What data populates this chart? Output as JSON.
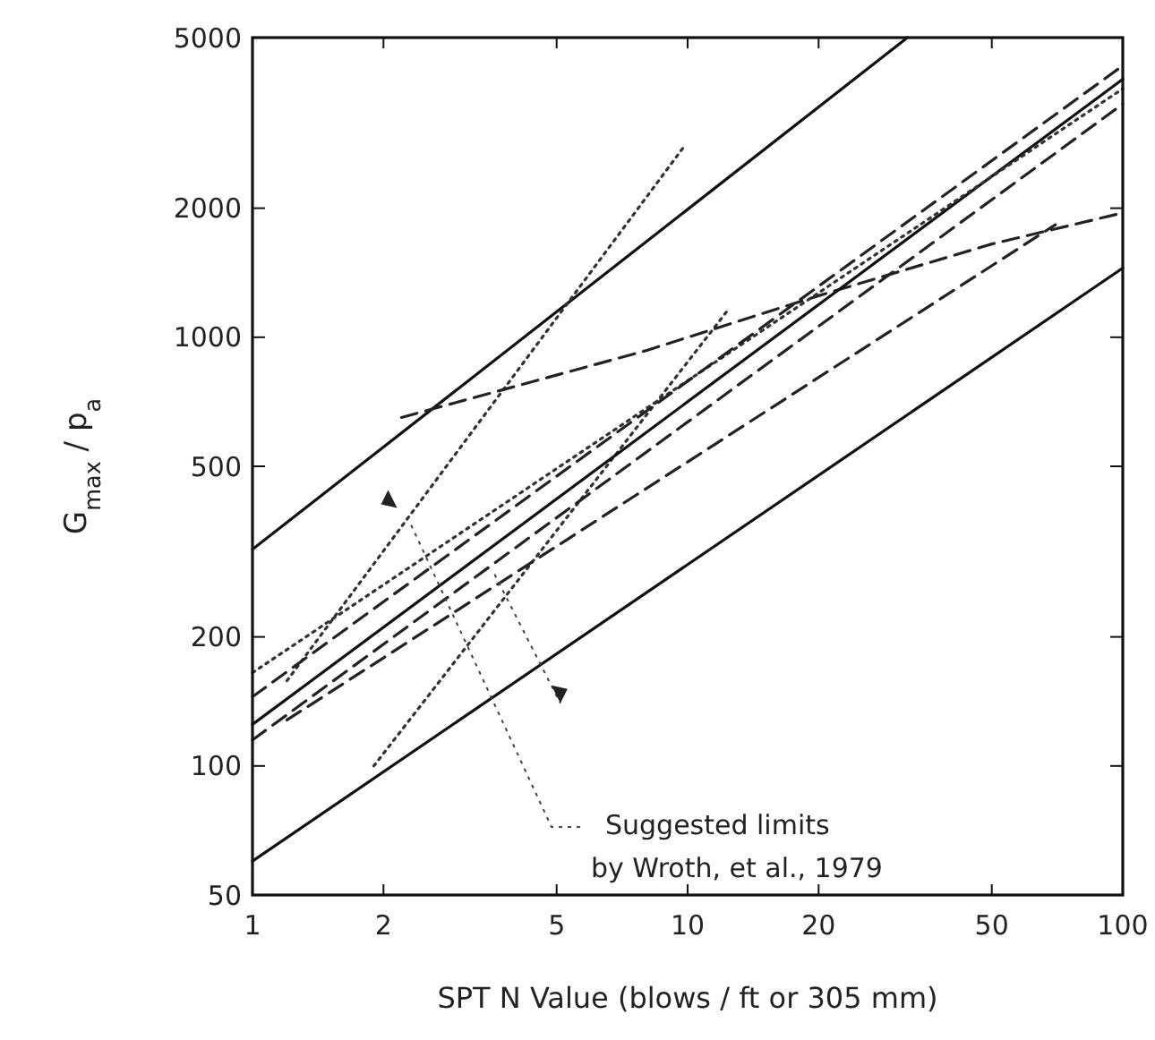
{
  "chart_data": {
    "type": "line",
    "xlabel": "SPT  N Value (blows / ft  or  305 mm)",
    "ylabel": "G$_{max}$ / p$_{a}$",
    "log": "xy",
    "xlim": [
      1,
      100
    ],
    "ylim": [
      50,
      5000
    ],
    "xticks": [
      1,
      2,
      5,
      10,
      20,
      50,
      100
    ],
    "yticks": [
      50,
      100,
      200,
      500,
      1000,
      2000,
      5000
    ],
    "grid": false,
    "annotations": [
      "Suggested limits\nby Wroth, et al., 1979"
    ],
    "series": [
      {
        "color": "#111111",
        "line_style": "solid",
        "x": [
          1,
          32
        ],
        "values": [
          320,
          5000
        ]
      },
      {
        "color": "#111111",
        "line_style": "solid",
        "x": [
          1,
          100
        ],
        "values": [
          60,
          1450
        ]
      },
      {
        "color": "#333333",
        "line_style": "dotted",
        "x": [
          1.2,
          9.8
        ],
        "values": [
          158,
          2780
        ]
      },
      {
        "color": "#333333",
        "line_style": "dotted",
        "x": [
          1.9,
          12.4
        ],
        "values": [
          100,
          1160
        ]
      },
      {
        "color": "#222222",
        "line_style": "dashed",
        "x": [
          2.2,
          8,
          20,
          50,
          100
        ],
        "values": [
          650,
          930,
          1250,
          1650,
          1950
        ]
      },
      {
        "color": "#111111",
        "line_style": "solid",
        "x": [
          1,
          100
        ],
        "values": [
          125,
          4000
        ]
      },
      {
        "color": "#333333",
        "line_style": "dotted",
        "x": [
          1,
          100
        ],
        "values": [
          165,
          3800
        ]
      },
      {
        "color": "#222222",
        "line_style": "dashed",
        "x": [
          1,
          100
        ],
        "values": [
          145,
          4300
        ]
      },
      {
        "color": "#222222",
        "line_style": "dashed",
        "x": [
          1,
          100
        ],
        "values": [
          115,
          3500
        ]
      },
      {
        "color": "#222222",
        "line_style": "dashed",
        "x": [
          1.2,
          10,
          70
        ],
        "values": [
          128,
          512,
          1830
        ]
      }
    ]
  }
}
